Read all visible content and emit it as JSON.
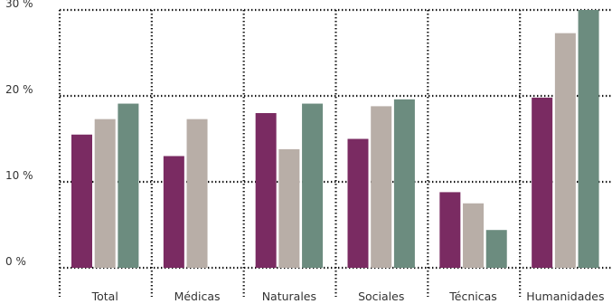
{
  "chart_data": {
    "type": "bar",
    "categories": [
      "Total",
      "Médicas",
      "Naturales",
      "Sociales",
      "Técnicas",
      "Humanidades"
    ],
    "series": [
      {
        "values": [
          15.5,
          13.0,
          18.0,
          15.0,
          8.8,
          19.8
        ]
      },
      {
        "values": [
          17.3,
          17.3,
          13.8,
          18.8,
          7.5,
          27.3
        ]
      },
      {
        "values": [
          19.1,
          null,
          19.1,
          19.6,
          4.4,
          30.0
        ]
      }
    ],
    "y_ticks": [
      "0 %",
      "10 %",
      "20 %",
      "30 %"
    ],
    "ylim": [
      0,
      30
    ],
    "xlabel": "",
    "ylabel": "",
    "grid": true,
    "colors": [
      "#7a2b62",
      "#b8aea7",
      "#6c8c7f"
    ]
  }
}
